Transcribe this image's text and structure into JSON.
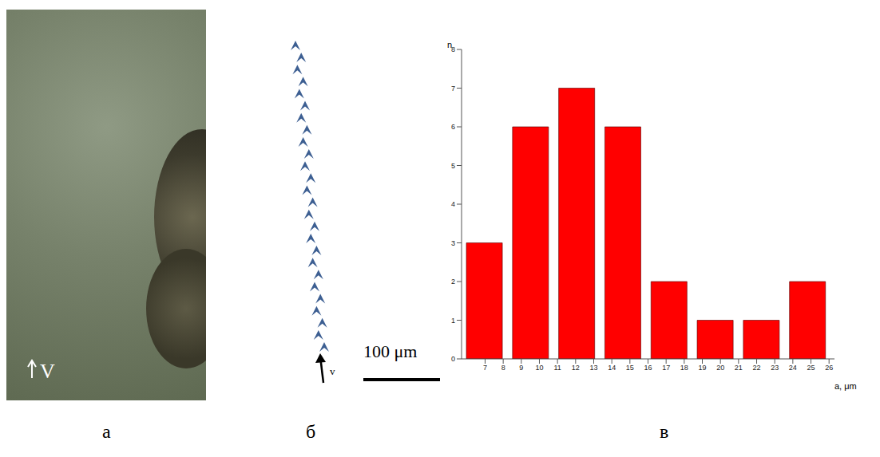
{
  "panels": [
    {
      "label": "а",
      "arrow_label": "V"
    },
    {
      "label": "б",
      "arrow_label": "v",
      "scale_bar": "100 μm"
    },
    {
      "label": "в"
    }
  ],
  "chart_data": {
    "type": "histogram",
    "bins": [
      5.7,
      8.25,
      10.8,
      13.35,
      15.9,
      18.45,
      21.0,
      23.55,
      26.1
    ],
    "values": [
      3,
      6,
      7,
      6,
      2,
      1,
      1,
      2
    ],
    "color": "#ff0000",
    "xlim": [
      5.7,
      26.3
    ],
    "xticks": [
      7,
      8,
      9,
      10,
      11,
      12,
      13,
      14,
      15,
      16,
      17,
      18,
      19,
      20,
      21,
      22,
      23,
      24,
      25,
      26
    ],
    "ylim": [
      0,
      8
    ],
    "yticks": [
      0,
      1,
      2,
      3,
      4,
      5,
      6,
      7,
      8
    ],
    "x_label": "a, μm",
    "y_label": "n",
    "grid": false
  }
}
